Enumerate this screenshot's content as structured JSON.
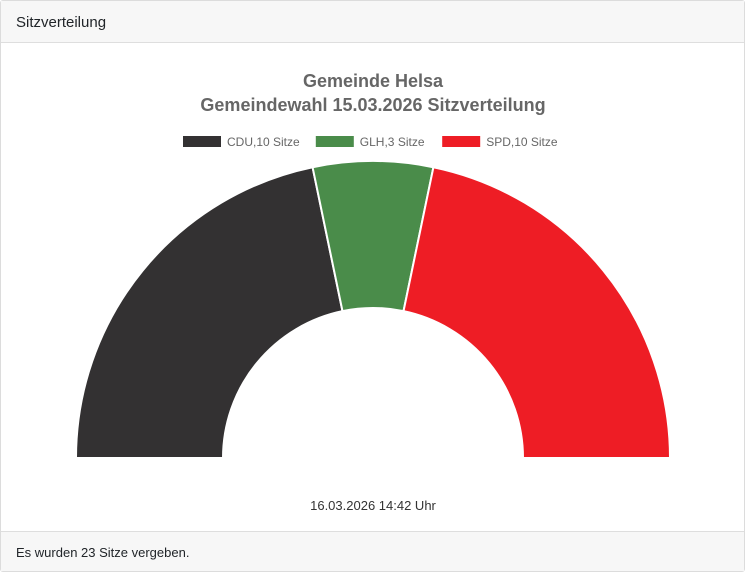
{
  "card": {
    "header_title": "Sitzverteilung",
    "footer_text": "Es wurden 23 Sitze vergeben."
  },
  "chart_data": {
    "type": "pie",
    "variant": "half-doughnut",
    "title": [
      "Gemeinde Helsa",
      "Gemeindewahl 15.03.2026 Sitzverteilung"
    ],
    "categories": [
      "CDU",
      "GLH",
      "SPD"
    ],
    "legend_labels": [
      "CDU,10 Sitze",
      "GLH,3 Sitze",
      "SPD,10 Sitze"
    ],
    "values": [
      10,
      3,
      10
    ],
    "colors": [
      "#333132",
      "#4a8c4a",
      "#ee1d25"
    ],
    "legend_position": "top",
    "timestamp": "16.03.2026 14:42 Uhr"
  }
}
